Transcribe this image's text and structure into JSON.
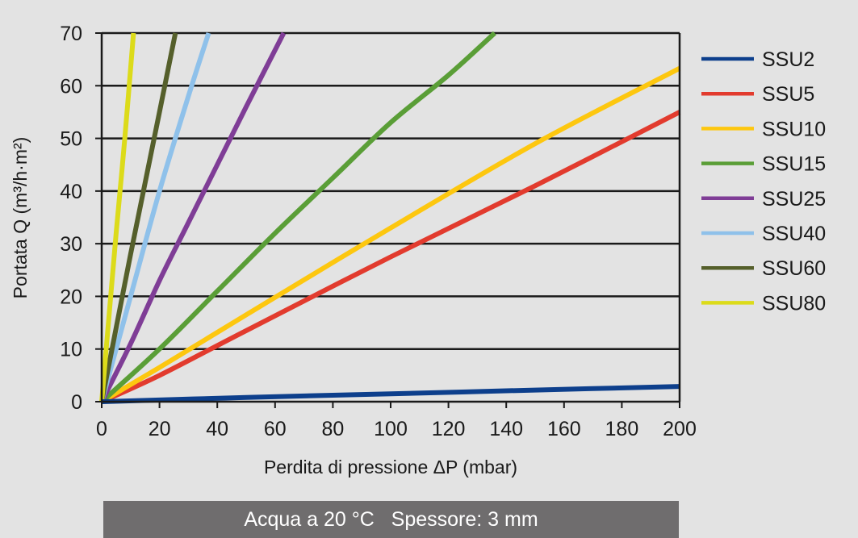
{
  "chart_data": {
    "type": "line",
    "xlabel": "Perdita di pressione ΔP (mbar)",
    "ylabel": "Portata Q (m³/h·m²)",
    "xlim": [
      0,
      200
    ],
    "ylim": [
      0,
      70
    ],
    "xticks": [
      "0",
      "20",
      "40",
      "60",
      "80",
      "100",
      "120",
      "140",
      "160",
      "180",
      "200"
    ],
    "yticks": [
      "0",
      "10",
      "20",
      "30",
      "40",
      "50",
      "60",
      "70"
    ],
    "grid": "horizontal",
    "legend_position": "right",
    "series": [
      {
        "name": "SSU2",
        "color": "#0d3f8c",
        "points": [
          [
            0,
            0
          ],
          [
            50,
            0.8
          ],
          [
            100,
            1.5
          ],
          [
            150,
            2.2
          ],
          [
            200,
            2.9
          ]
        ]
      },
      {
        "name": "SSU5",
        "color": "#e23b2e",
        "points": [
          [
            0,
            0
          ],
          [
            20,
            5
          ],
          [
            50,
            13.5
          ],
          [
            100,
            27.5
          ],
          [
            150,
            41
          ],
          [
            200,
            55
          ]
        ]
      },
      {
        "name": "SSU10",
        "color": "#fdc70f",
        "points": [
          [
            0,
            0
          ],
          [
            20,
            6.5
          ],
          [
            50,
            16.5
          ],
          [
            100,
            33
          ],
          [
            150,
            49
          ],
          [
            200,
            63.3
          ]
        ]
      },
      {
        "name": "SSU15",
        "color": "#5a9e37",
        "points": [
          [
            0,
            0
          ],
          [
            20,
            10
          ],
          [
            40,
            21
          ],
          [
            60,
            32
          ],
          [
            80,
            42.5
          ],
          [
            100,
            53
          ],
          [
            120,
            62
          ],
          [
            136,
            70
          ]
        ]
      },
      {
        "name": "SSU25",
        "color": "#7f3d96",
        "points": [
          [
            0,
            0
          ],
          [
            10,
            11
          ],
          [
            20,
            23
          ],
          [
            30,
            34
          ],
          [
            40,
            45
          ],
          [
            50,
            56
          ],
          [
            63,
            70
          ]
        ]
      },
      {
        "name": "SSU40",
        "color": "#8fc1ea",
        "points": [
          [
            0,
            0
          ],
          [
            5,
            10
          ],
          [
            10,
            20
          ],
          [
            20,
            40
          ],
          [
            30,
            58
          ],
          [
            37,
            70
          ]
        ]
      },
      {
        "name": "SSU60",
        "color": "#555f2b",
        "points": [
          [
            0,
            0
          ],
          [
            5,
            14
          ],
          [
            10,
            28
          ],
          [
            20,
            55
          ],
          [
            25.5,
            70
          ]
        ]
      },
      {
        "name": "SSU80",
        "color": "#dcdb1a",
        "points": [
          [
            0,
            0
          ],
          [
            5,
            32
          ],
          [
            8,
            50
          ],
          [
            11,
            70
          ]
        ]
      }
    ]
  },
  "caption": "Acqua a 20 °C   Spessore: 3 mm"
}
